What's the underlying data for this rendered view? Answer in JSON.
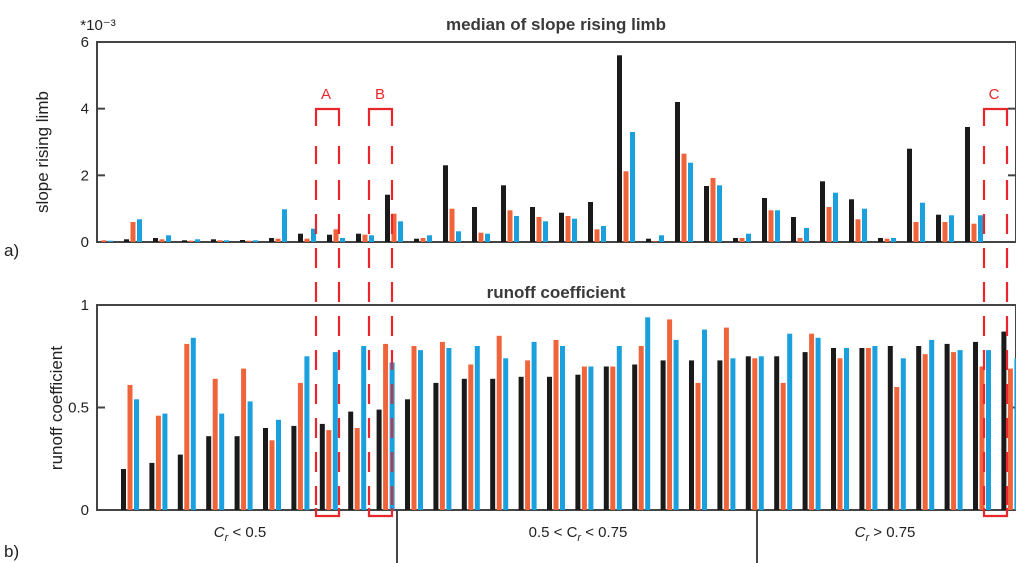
{
  "chart_data": [
    {
      "type": "bar",
      "panel": "a)",
      "title": "median of slope rising limb",
      "ylabel": "slope rising limb",
      "scale_label": "*10⁻³",
      "ylim": [
        0,
        6
      ],
      "yticks": [
        "0",
        "2",
        "4",
        "6"
      ],
      "series_colors": [
        "#1a1a1a",
        "#f0643c",
        "#1aa0dc"
      ],
      "series": [
        {
          "values": [
            0,
            0.08,
            0.12,
            0.05,
            0.08,
            0.06,
            0.12,
            0.25,
            0.22,
            0.25,
            1.42,
            0.1,
            2.3,
            1.05,
            1.7,
            1.05,
            0.88,
            1.2,
            5.6,
            0.1,
            4.2,
            1.68,
            0.12,
            1.32,
            0.75,
            1.82,
            1.28,
            0.12,
            2.8,
            0.82,
            3.45
          ]
        },
        {
          "values": [
            0.05,
            0.6,
            0.08,
            0.04,
            0.05,
            0.04,
            0.1,
            0.1,
            0.38,
            0.22,
            0.85,
            0.12,
            1.0,
            0.28,
            0.95,
            0.75,
            0.78,
            0.38,
            2.12,
            0.02,
            2.65,
            1.92,
            0.12,
            0.95,
            0.12,
            1.05,
            0.68,
            0.1,
            0.6,
            0.6,
            0.55
          ]
        },
        {
          "values": [
            0.04,
            0.68,
            0.2,
            0.08,
            0.05,
            0.05,
            0.98,
            0.4,
            0.12,
            0.2,
            0.62,
            0.2,
            0.32,
            0.25,
            0.78,
            0.62,
            0.7,
            0.48,
            3.3,
            0.2,
            2.38,
            1.7,
            0.25,
            0.95,
            0.42,
            1.48,
            1.0,
            0.12,
            1.18,
            0.8,
            0.8
          ]
        }
      ]
    },
    {
      "type": "bar",
      "panel": "b)",
      "title": "runoff coefficient",
      "ylabel": "runoff coefficient",
      "ylim": [
        0,
        1
      ],
      "yticks": [
        "0",
        "0.5",
        "1"
      ],
      "series_colors": [
        "#1a1a1a",
        "#f0643c",
        "#1aa0dc"
      ],
      "series": [
        {
          "values": [
            0.2,
            0.23,
            0.27,
            0.36,
            0.36,
            0.4,
            0.41,
            0.42,
            0.48,
            0.49,
            0.54,
            0.62,
            0.64,
            0.64,
            0.65,
            0.65,
            0.66,
            0.7,
            0.71,
            0.73,
            0.73,
            0.73,
            0.75,
            0.75,
            0.77,
            0.79,
            0.79,
            0.8,
            0.8,
            0.81,
            0.82,
            0.87
          ]
        },
        {
          "values": [
            0.61,
            0.46,
            0.81,
            0.64,
            0.69,
            0.34,
            0.62,
            0.39,
            0.4,
            0.81,
            0.8,
            0.82,
            0.71,
            0.85,
            0.73,
            0.83,
            0.7,
            0.7,
            0.8,
            0.93,
            0.62,
            0.89,
            0.74,
            0.62,
            0.86,
            0.74,
            0.79,
            0.6,
            0.76,
            0.77,
            0.7,
            0.69
          ]
        },
        {
          "values": [
            0.54,
            0.47,
            0.84,
            0.47,
            0.53,
            0.44,
            0.75,
            0.77,
            0.8,
            0.72,
            0.78,
            0.79,
            0.8,
            0.74,
            0.82,
            0.8,
            0.7,
            0.8,
            0.94,
            0.83,
            0.88,
            0.74,
            0.75,
            0.86,
            0.84,
            0.79,
            0.8,
            0.74,
            0.83,
            0.78,
            0.78,
            0.74
          ]
        }
      ],
      "groups": [
        {
          "pre": "C",
          "sub": "r",
          "post": " < 0.5"
        },
        {
          "pre": "0.5 < C",
          "sub": "r",
          "post": " < 0.75"
        },
        {
          "pre": "C",
          "sub": "r",
          "post": " > 0.75"
        }
      ]
    }
  ],
  "annotations": {
    "A": "A",
    "B": "B",
    "C": "C",
    "color": "#e8262c"
  }
}
